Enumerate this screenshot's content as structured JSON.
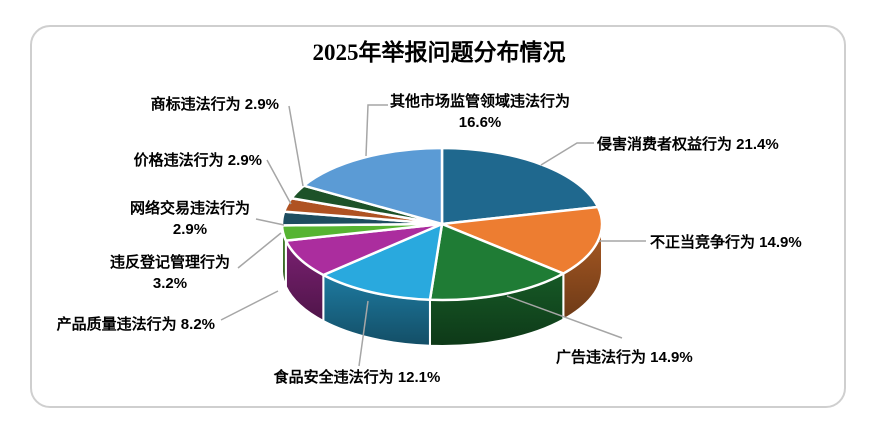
{
  "title": "2025年举报问题分布情况",
  "chart_data": {
    "type": "pie",
    "style": "3d",
    "title": "2025年举报问题分布情况",
    "unit": "%",
    "start_angle_deg": 0,
    "direction": "clockwise",
    "legend_position": "none",
    "labels_on": "leader-lines",
    "slices": [
      {
        "key": "consumer-rights",
        "label": "侵害消费者权益行为",
        "value": 21.4,
        "color": "#1F688E"
      },
      {
        "key": "unfair-competition",
        "label": "不正当竞争行为",
        "value": 14.9,
        "color": "#ED7D31"
      },
      {
        "key": "advertising",
        "label": "广告违法行为",
        "value": 14.9,
        "color": "#1F7C35"
      },
      {
        "key": "food-safety",
        "label": "食品安全违法行为",
        "value": 12.1,
        "color": "#29A9DE"
      },
      {
        "key": "product-quality",
        "label": "产品质量违法行为",
        "value": 8.2,
        "color": "#AB2D9E"
      },
      {
        "key": "registration",
        "label": "违反登记管理行为",
        "value": 3.2,
        "color": "#56B432"
      },
      {
        "key": "online-transaction",
        "label": "网络交易违法行为",
        "value": 2.9,
        "color": "#1D4D60"
      },
      {
        "key": "price",
        "label": "价格违法行为",
        "value": 2.9,
        "color": "#AF5222"
      },
      {
        "key": "trademark",
        "label": "商标违法行为",
        "value": 2.9,
        "color": "#1D5228"
      },
      {
        "key": "other-market",
        "label": "其他市场监管领域违法行为",
        "value": 16.6,
        "color": "#5B9BD5"
      }
    ],
    "colors": {
      "leader_line": "#A6A6A6",
      "slice_border": "#FFFFFF",
      "card_border": "#CFCFCF",
      "text": "#000000"
    }
  }
}
